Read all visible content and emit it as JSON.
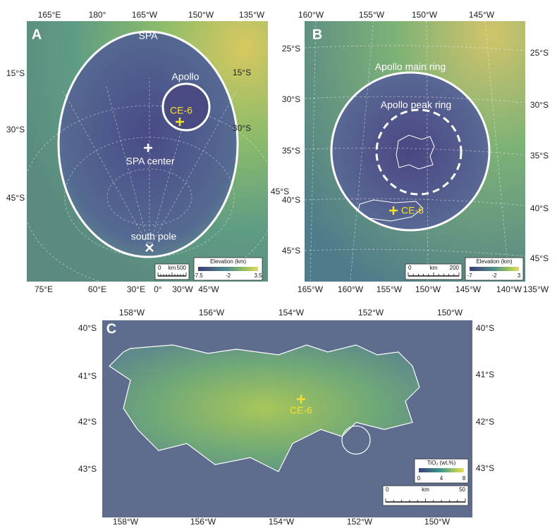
{
  "panels": [
    {
      "label": "A",
      "top_labels": [
        "165°E",
        "180°",
        "165°W",
        "150°W",
        "135°W"
      ],
      "left_labels": [
        "15°S",
        "30°S",
        "45°S"
      ],
      "right_labels": [
        "15°S",
        "30°S",
        "45°S"
      ],
      "bottom_labels": [
        "75°E",
        "60°E",
        "30°E",
        "0°",
        "30°W",
        "45°W"
      ],
      "annotations": [
        "SPA",
        "Apollo",
        "CE-6",
        "SPA center",
        "south pole"
      ],
      "legend": {
        "title": "Elevation (km)",
        "ticks": [
          -7.5,
          -2,
          3.5
        ]
      },
      "scale_bar": {
        "start": 0,
        "unit": "km",
        "end": 500
      }
    },
    {
      "label": "B",
      "top_labels": [
        "160°W",
        "155°W",
        "150°W",
        "145°W"
      ],
      "left_labels": [
        "25°S",
        "30°S",
        "35°S",
        "40°S",
        "45°S"
      ],
      "right_labels": [
        "25°S",
        "30°S",
        "35°S",
        "40°S",
        "45°S"
      ],
      "bottom_labels": [
        "165°W",
        "160°W",
        "155°W",
        "150°W",
        "145°W",
        "140°W",
        "135°W"
      ],
      "annotations": [
        "Apollo main ring",
        "Apollo peak ring",
        "CE-6"
      ],
      "legend": {
        "title": "Elevation (km)",
        "ticks": [
          -7,
          -2,
          3
        ]
      },
      "scale_bar": {
        "start": 0,
        "unit": "km",
        "end": 200
      }
    },
    {
      "label": "C",
      "top_labels": [
        "158°W",
        "156°W",
        "154°W",
        "152°W",
        "150°W"
      ],
      "left_labels": [
        "40°S",
        "41°S",
        "42°S",
        "43°S"
      ],
      "right_labels": [
        "40°S",
        "41°S",
        "42°S",
        "43°S"
      ],
      "bottom_labels": [
        "158°W",
        "156°W",
        "154°W",
        "152°W",
        "150°W"
      ],
      "annotations": [
        "CE-6"
      ],
      "legend": {
        "title": "TiO₂ (wt.%)",
        "ticks": [
          0,
          4,
          8
        ]
      },
      "scale_bar": {
        "start": 0,
        "unit": "km",
        "end": 50
      }
    }
  ]
}
